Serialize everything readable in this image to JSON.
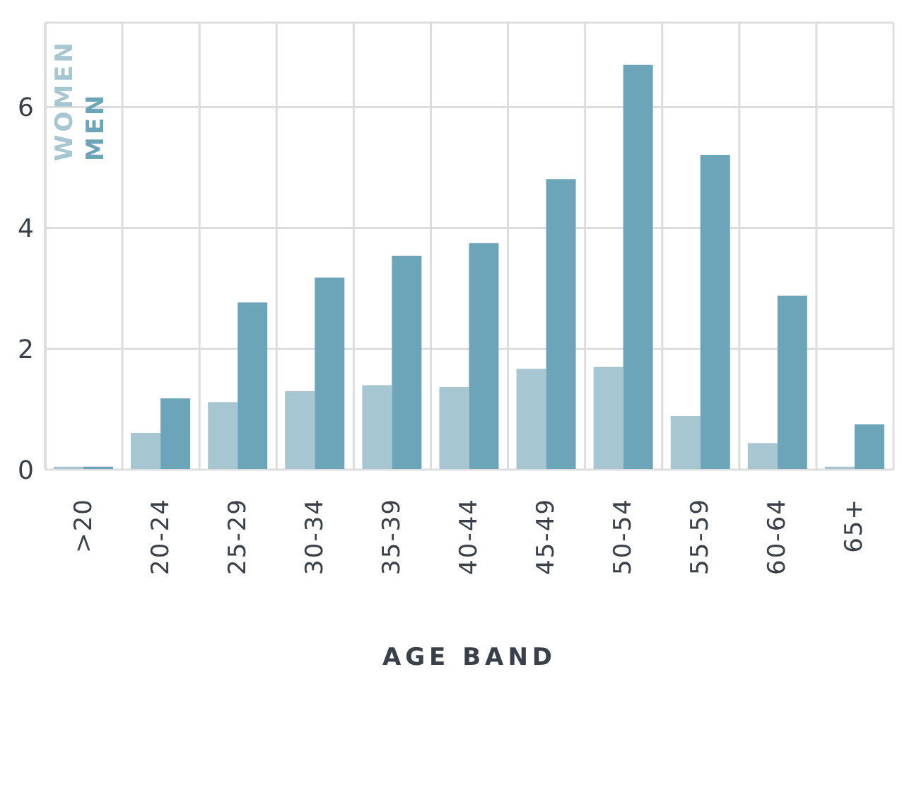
{
  "chart_data": {
    "type": "bar",
    "xlabel": "AGE BAND",
    "categories": [
      ">20",
      "20-24",
      "25-29",
      "30-34",
      "35-39",
      "40-44",
      "45-49",
      "50-54",
      "55-59",
      "60-64",
      "65+"
    ],
    "series": [
      {
        "name": "WOMEN",
        "color": "#a6c6d1",
        "values": [
          0.05,
          0.61,
          1.12,
          1.3,
          1.4,
          1.37,
          1.67,
          1.7,
          0.89,
          0.44,
          0.05
        ]
      },
      {
        "name": "MEN",
        "color": "#6ca4b9",
        "values": [
          0.05,
          1.18,
          2.77,
          3.18,
          3.54,
          3.75,
          4.81,
          6.7,
          5.21,
          2.88,
          0.75
        ]
      }
    ],
    "ylim": [
      0,
      7.4
    ],
    "yticks": [
      0,
      2,
      4,
      6
    ],
    "grid": true,
    "legend": "top left"
  }
}
